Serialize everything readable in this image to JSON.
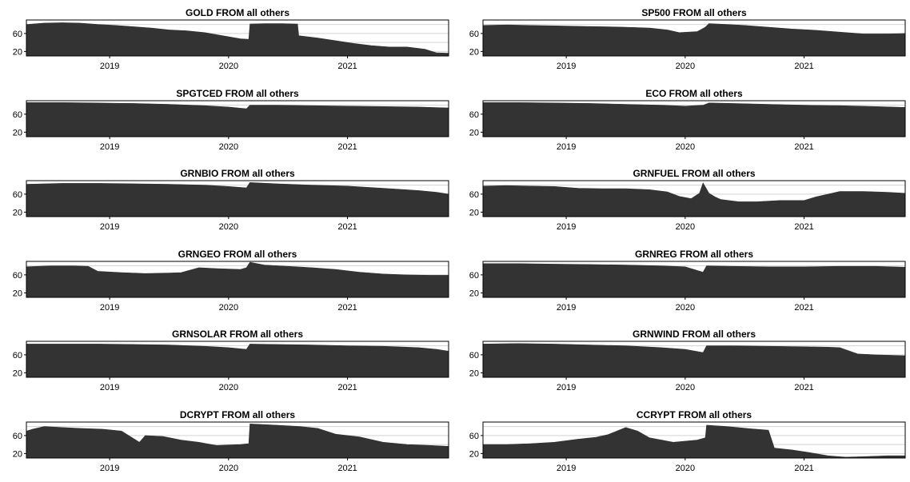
{
  "colors": {
    "area": "#333333",
    "grid": "#d3d3d3",
    "frame": "#000000",
    "background": "#ffffff"
  },
  "chart_data": [
    {
      "type": "area",
      "title": "GOLD FROM all others",
      "xlim": [
        2018.3,
        2021.85
      ],
      "ylim": [
        10,
        90
      ],
      "yticks": [
        20,
        60
      ],
      "xticks": [
        "2019",
        "2020",
        "2021"
      ],
      "grid": true,
      "x": [
        2018.3,
        2018.45,
        2018.6,
        2018.75,
        2018.9,
        2019.05,
        2019.2,
        2019.35,
        2019.5,
        2019.65,
        2019.8,
        2019.95,
        2020.1,
        2020.17,
        2020.18,
        2020.3,
        2020.45,
        2020.58,
        2020.59,
        2020.75,
        2020.9,
        2021.05,
        2021.2,
        2021.35,
        2021.5,
        2021.65,
        2021.75,
        2021.85
      ],
      "values": [
        80,
        83,
        84,
        83,
        80,
        78,
        75,
        72,
        68,
        66,
        62,
        55,
        48,
        47,
        81,
        82,
        82,
        81,
        55,
        50,
        44,
        38,
        33,
        30,
        30,
        25,
        17,
        16
      ]
    },
    {
      "type": "area",
      "title": "SP500 FROM all others",
      "xlim": [
        2018.3,
        2021.85
      ],
      "ylim": [
        10,
        90
      ],
      "yticks": [
        20,
        60
      ],
      "xticks": [
        "2019",
        "2020",
        "2021"
      ],
      "grid": true,
      "x": [
        2018.3,
        2018.5,
        2018.7,
        2018.9,
        2019.1,
        2019.3,
        2019.5,
        2019.7,
        2019.85,
        2019.95,
        2020.1,
        2020.17,
        2020.2,
        2020.35,
        2020.5,
        2020.7,
        2020.9,
        2021.1,
        2021.3,
        2021.5,
        2021.7,
        2021.85
      ],
      "values": [
        78,
        79,
        78,
        77,
        76,
        75,
        74,
        72,
        68,
        62,
        64,
        74,
        82,
        80,
        78,
        74,
        70,
        67,
        63,
        59,
        59,
        60
      ]
    },
    {
      "type": "area",
      "title": "SPGTCED FROM all others",
      "xlim": [
        2018.3,
        2021.85
      ],
      "ylim": [
        10,
        90
      ],
      "yticks": [
        20,
        60
      ],
      "xticks": [
        "2019",
        "2020",
        "2021"
      ],
      "grid": true,
      "x": [
        2018.3,
        2018.6,
        2018.9,
        2019.2,
        2019.5,
        2019.8,
        2020.0,
        2020.15,
        2020.18,
        2020.4,
        2020.7,
        2021.0,
        2021.3,
        2021.6,
        2021.85
      ],
      "values": [
        86,
        86,
        85,
        84,
        82,
        79,
        76,
        72,
        80,
        80,
        79,
        78,
        77,
        76,
        74
      ]
    },
    {
      "type": "area",
      "title": "ECO FROM all others",
      "xlim": [
        2018.3,
        2021.85
      ],
      "ylim": [
        10,
        90
      ],
      "yticks": [
        20,
        60
      ],
      "xticks": [
        "2019",
        "2020",
        "2021"
      ],
      "grid": true,
      "x": [
        2018.3,
        2018.6,
        2018.9,
        2019.2,
        2019.5,
        2019.8,
        2020.0,
        2020.15,
        2020.2,
        2020.4,
        2020.7,
        2021.0,
        2021.3,
        2021.6,
        2021.85
      ],
      "values": [
        86,
        86,
        85,
        84,
        82,
        80,
        78,
        80,
        85,
        84,
        82,
        80,
        79,
        77,
        75
      ]
    },
    {
      "type": "area",
      "title": "GRNBIO FROM all others",
      "xlim": [
        2018.3,
        2021.85
      ],
      "ylim": [
        10,
        90
      ],
      "yticks": [
        20,
        60
      ],
      "xticks": [
        "2019",
        "2020",
        "2021"
      ],
      "grid": true,
      "x": [
        2018.3,
        2018.6,
        2018.9,
        2019.2,
        2019.5,
        2019.8,
        2020.0,
        2020.15,
        2020.18,
        2020.4,
        2020.7,
        2021.0,
        2021.3,
        2021.6,
        2021.75,
        2021.85
      ],
      "values": [
        82,
        84,
        84,
        83,
        82,
        80,
        77,
        74,
        86,
        83,
        80,
        78,
        73,
        68,
        64,
        60
      ]
    },
    {
      "type": "area",
      "title": "GRNFUEL FROM all others",
      "xlim": [
        2018.3,
        2021.85
      ],
      "ylim": [
        10,
        90
      ],
      "yticks": [
        20,
        60
      ],
      "xticks": [
        "2019",
        "2020",
        "2021"
      ],
      "grid": true,
      "x": [
        2018.3,
        2018.5,
        2018.7,
        2018.9,
        2019.1,
        2019.3,
        2019.5,
        2019.7,
        2019.85,
        2019.95,
        2020.05,
        2020.12,
        2020.15,
        2020.2,
        2020.25,
        2020.3,
        2020.45,
        2020.6,
        2020.8,
        2021.0,
        2021.1,
        2021.3,
        2021.5,
        2021.7,
        2021.85
      ],
      "values": [
        78,
        79,
        78,
        77,
        73,
        72,
        72,
        70,
        65,
        55,
        50,
        62,
        85,
        62,
        54,
        48,
        43,
        43,
        46,
        46,
        54,
        66,
        66,
        64,
        62
      ]
    },
    {
      "type": "area",
      "title": "GRNGEO FROM all others",
      "xlim": [
        2018.3,
        2021.85
      ],
      "ylim": [
        10,
        90
      ],
      "yticks": [
        20,
        60
      ],
      "xticks": [
        "2019",
        "2020",
        "2021"
      ],
      "grid": true,
      "x": [
        2018.3,
        2018.5,
        2018.7,
        2018.82,
        2018.9,
        2019.1,
        2019.3,
        2019.5,
        2019.6,
        2019.75,
        2019.9,
        2020.1,
        2020.15,
        2020.18,
        2020.3,
        2020.5,
        2020.7,
        2020.9,
        2021.1,
        2021.3,
        2021.5,
        2021.7,
        2021.85
      ],
      "values": [
        78,
        80,
        80,
        79,
        68,
        65,
        63,
        64,
        65,
        76,
        74,
        72,
        76,
        88,
        82,
        79,
        76,
        72,
        66,
        62,
        60,
        59,
        59
      ]
    },
    {
      "type": "area",
      "title": "GRNREG FROM all others",
      "xlim": [
        2018.3,
        2021.85
      ],
      "ylim": [
        10,
        90
      ],
      "yticks": [
        20,
        60
      ],
      "xticks": [
        "2019",
        "2020",
        "2021"
      ],
      "grid": true,
      "x": [
        2018.3,
        2018.6,
        2018.9,
        2019.2,
        2019.5,
        2019.8,
        2020.0,
        2020.15,
        2020.18,
        2020.4,
        2020.7,
        2021.0,
        2021.3,
        2021.6,
        2021.85
      ],
      "values": [
        85,
        85,
        84,
        83,
        82,
        80,
        78,
        66,
        80,
        79,
        78,
        78,
        79,
        79,
        77
      ]
    },
    {
      "type": "area",
      "title": "GRNSOLAR FROM all others",
      "xlim": [
        2018.3,
        2021.85
      ],
      "ylim": [
        10,
        90
      ],
      "yticks": [
        20,
        60
      ],
      "xticks": [
        "2019",
        "2020",
        "2021"
      ],
      "grid": true,
      "x": [
        2018.3,
        2018.6,
        2018.9,
        2019.2,
        2019.5,
        2019.8,
        2020.0,
        2020.15,
        2020.18,
        2020.4,
        2020.7,
        2021.0,
        2021.3,
        2021.6,
        2021.75,
        2021.85
      ],
      "values": [
        84,
        84,
        84,
        83,
        82,
        79,
        76,
        72,
        84,
        83,
        82,
        80,
        79,
        76,
        72,
        68
      ]
    },
    {
      "type": "area",
      "title": "GRNWIND FROM all others",
      "xlim": [
        2018.3,
        2021.85
      ],
      "ylim": [
        10,
        90
      ],
      "yticks": [
        20,
        60
      ],
      "xticks": [
        "2019",
        "2020",
        "2021"
      ],
      "grid": true,
      "x": [
        2018.3,
        2018.6,
        2018.9,
        2019.2,
        2019.5,
        2019.8,
        2020.0,
        2020.15,
        2020.18,
        2020.4,
        2020.7,
        2021.0,
        2021.2,
        2021.3,
        2021.45,
        2021.6,
        2021.85
      ],
      "values": [
        84,
        85,
        84,
        82,
        80,
        76,
        72,
        65,
        80,
        80,
        79,
        78,
        77,
        76,
        62,
        60,
        58
      ]
    },
    {
      "type": "area",
      "title": "DCRYPT FROM all others",
      "xlim": [
        2018.3,
        2021.85
      ],
      "ylim": [
        10,
        90
      ],
      "yticks": [
        20,
        60
      ],
      "xticks": [
        "2019",
        "2020",
        "2021"
      ],
      "grid": true,
      "x": [
        2018.3,
        2018.35,
        2018.45,
        2018.6,
        2018.75,
        2018.95,
        2019.1,
        2019.25,
        2019.3,
        2019.45,
        2019.6,
        2019.75,
        2019.9,
        2020.1,
        2020.17,
        2020.18,
        2020.4,
        2020.6,
        2020.75,
        2020.9,
        2021.1,
        2021.3,
        2021.5,
        2021.7,
        2021.85
      ],
      "values": [
        70,
        74,
        80,
        78,
        76,
        74,
        70,
        45,
        60,
        58,
        50,
        45,
        38,
        40,
        42,
        86,
        83,
        80,
        76,
        63,
        57,
        45,
        40,
        38,
        36
      ]
    },
    {
      "type": "area",
      "title": "CCRYPT FROM all others",
      "xlim": [
        2018.3,
        2021.85
      ],
      "ylim": [
        10,
        90
      ],
      "yticks": [
        20,
        60
      ],
      "xticks": [
        "2019",
        "2020",
        "2021"
      ],
      "grid": true,
      "x": [
        2018.3,
        2018.5,
        2018.7,
        2018.9,
        2019.1,
        2019.25,
        2019.35,
        2019.5,
        2019.6,
        2019.7,
        2019.9,
        2020.1,
        2020.17,
        2020.18,
        2020.35,
        2020.55,
        2020.7,
        2020.75,
        2020.9,
        2021.05,
        2021.2,
        2021.35,
        2021.5,
        2021.7,
        2021.85
      ],
      "values": [
        40,
        40,
        42,
        45,
        52,
        56,
        62,
        78,
        70,
        55,
        45,
        50,
        55,
        83,
        80,
        75,
        72,
        32,
        28,
        22,
        15,
        12,
        13,
        15,
        15
      ]
    }
  ]
}
